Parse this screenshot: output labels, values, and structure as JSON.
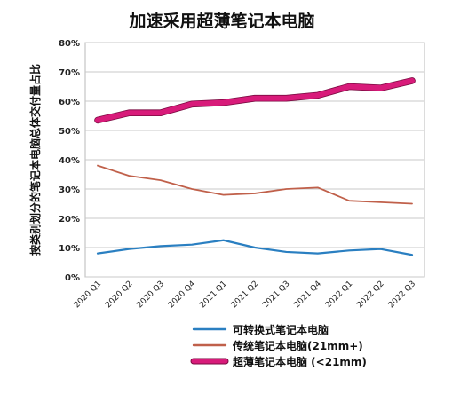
{
  "chart_data": {
    "type": "line",
    "title": "加速采用超薄笔记本电脑",
    "xlabel": "",
    "ylabel": "按类别划分的笔记本电脑总体交付量占比",
    "categories": [
      "2020 Q1",
      "2020 Q2",
      "2020 Q3",
      "2020 Q4",
      "2021 Q1",
      "2021 Q2",
      "2021 Q3",
      "2021 Q4",
      "2022 Q1",
      "2022 Q2",
      "2022 Q3"
    ],
    "y_ticks": [
      "0%",
      "10%",
      "20%",
      "30%",
      "40%",
      "50%",
      "60%",
      "70%",
      "80%"
    ],
    "ylim": [
      0,
      80
    ],
    "grid": true,
    "legend_position": "bottom",
    "series": [
      {
        "name": "可转换式笔记本电脑",
        "color": "#2a7fc1",
        "values": [
          8,
          9.5,
          10.5,
          11,
          12.5,
          10,
          8.5,
          8,
          9,
          9.5,
          7.5
        ]
      },
      {
        "name": "传统笔记本电脑(21mm+)",
        "color": "#c0604a",
        "values": [
          38,
          34.5,
          33,
          30,
          28,
          28.5,
          30,
          30.5,
          26,
          25.5,
          25
        ]
      },
      {
        "name": "超薄笔记本电脑 (<21mm)",
        "color": "#d81b7a",
        "values": [
          53.5,
          56,
          56,
          59,
          59.5,
          61,
          61,
          62,
          65,
          64.5,
          67
        ]
      }
    ]
  }
}
